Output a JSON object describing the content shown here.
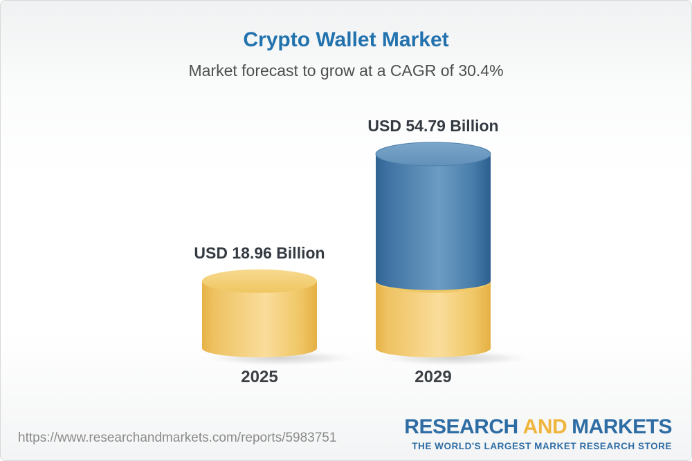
{
  "header": {
    "title": "Crypto Wallet Market",
    "subtitle": "Market forecast to grow at a CAGR of 30.4%"
  },
  "chart_data": {
    "type": "bar",
    "style": "3d-cylinder",
    "title": "Crypto Wallet Market",
    "subtitle": "Market forecast to grow at a CAGR of 30.4%",
    "unit": "USD Billion",
    "cagr_percent": 30.4,
    "categories": [
      "2025",
      "2029"
    ],
    "values": [
      18.96,
      54.79
    ],
    "value_labels": [
      "USD 18.96 Billion",
      "USD 54.79 Billion"
    ],
    "bars": [
      {
        "category": "2025",
        "total": 18.96,
        "segments": [
          {
            "value": 18.96,
            "color": "gold"
          }
        ]
      },
      {
        "category": "2029",
        "total": 54.79,
        "segments": [
          {
            "value": 18.96,
            "color": "gold"
          },
          {
            "value": 35.83,
            "color": "blue"
          }
        ]
      }
    ],
    "legend": "none",
    "axes": "none",
    "palette": {
      "gold": "#F3CD74",
      "blue": "#4A7FAC"
    }
  },
  "footer": {
    "url": "https://www.researchandmarkets.com/reports/5983751",
    "logo": {
      "word1": "RESEARCH",
      "word2": "AND",
      "word3": "MARKETS",
      "tagline": "THE WORLD'S LARGEST MARKET RESEARCH STORE"
    }
  },
  "colors": {
    "title_blue": "#2272AE",
    "subtitle_gray": "#4D4D4D",
    "label_dark": "#333A41",
    "url_gray": "#8A8A8A",
    "logo_blue": "#2E6DA4",
    "logo_gold": "#EFB53D",
    "bar_gold": "#F3CD74",
    "bar_blue": "#4A7FAC"
  }
}
